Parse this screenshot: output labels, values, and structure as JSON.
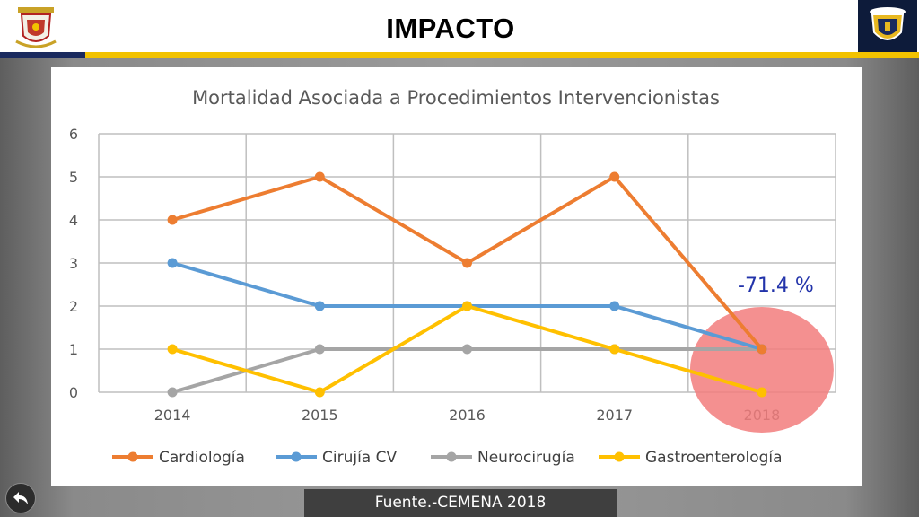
{
  "header": {
    "title": "IMPACTO",
    "logo_left_icon": "crest-emblem-icon",
    "logo_right_icon": "shield-emblem-icon"
  },
  "footer": {
    "source": "Fuente.-CEMENA 2018"
  },
  "nav": {
    "back_icon": "back-arrow-icon"
  },
  "annotation": {
    "text": "-71.4 %",
    "color": "#2233aa",
    "highlight_color": "#f27d7d"
  },
  "chart_data": {
    "type": "line",
    "title": "Mortalidad Asociada a Procedimientos Intervencionistas",
    "categories": [
      "2014",
      "2015",
      "2016",
      "2017",
      "2018"
    ],
    "ylim": [
      0,
      6
    ],
    "yticks": [
      "0",
      "1",
      "2",
      "3",
      "4",
      "5",
      "6"
    ],
    "grid": true,
    "legend": "bottom",
    "series": [
      {
        "name": "Cardiología",
        "values": [
          4,
          5,
          3,
          5,
          1
        ],
        "color": "#ed7d31"
      },
      {
        "name": "Cirujía CV",
        "values": [
          3,
          2,
          2,
          2,
          1
        ],
        "color": "#5b9bd5"
      },
      {
        "name": "Neurocirugía",
        "values": [
          0,
          1,
          1,
          1,
          1
        ],
        "color": "#a5a5a5"
      },
      {
        "name": "Gastroenterología",
        "values": [
          1,
          0,
          2,
          1,
          0
        ],
        "color": "#ffc000"
      }
    ]
  }
}
